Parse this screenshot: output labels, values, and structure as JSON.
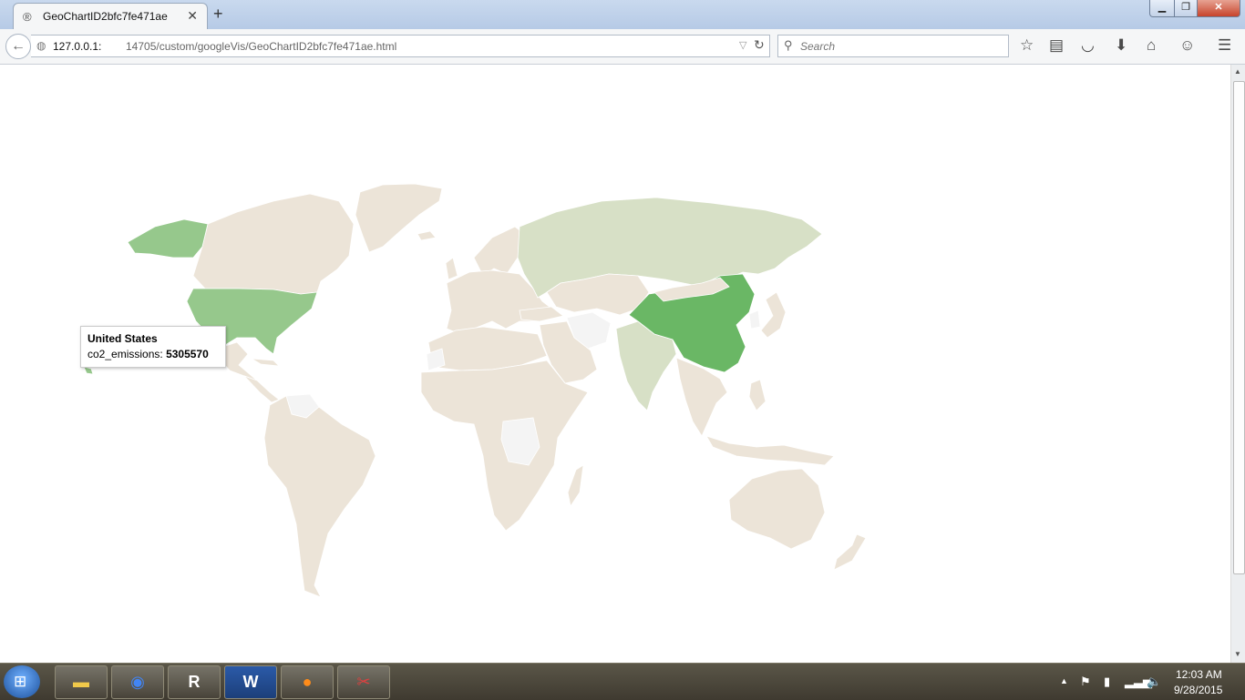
{
  "browser": {
    "tab_title": "GeoChartID2bfc7fe471ae",
    "url_host": "127.0.0.1:",
    "url_path": "14705/custom/googleVis/GeoChartID2bfc7fe471ae.html",
    "search_placeholder": "Search"
  },
  "map": {
    "type": "geochart",
    "color_scale": [
      "#f5f5f5",
      "#267114"
    ],
    "no_data_color": "#ece4d8",
    "highlighted_regions": [
      {
        "name": "United States",
        "shade": "medium"
      },
      {
        "name": "China",
        "shade": "dark"
      },
      {
        "name": "Russia",
        "shade": "light"
      },
      {
        "name": "India",
        "shade": "light"
      }
    ]
  },
  "tooltip": {
    "title": "United States",
    "metric_label": "co2_emissions:",
    "metric_value": "5305570"
  },
  "taskbar": {
    "apps": [
      "file-explorer",
      "chrome",
      "r-console",
      "word",
      "firefox",
      "snipping-tool"
    ],
    "clock_time": "12:03 AM",
    "clock_date": "9/28/2015"
  }
}
